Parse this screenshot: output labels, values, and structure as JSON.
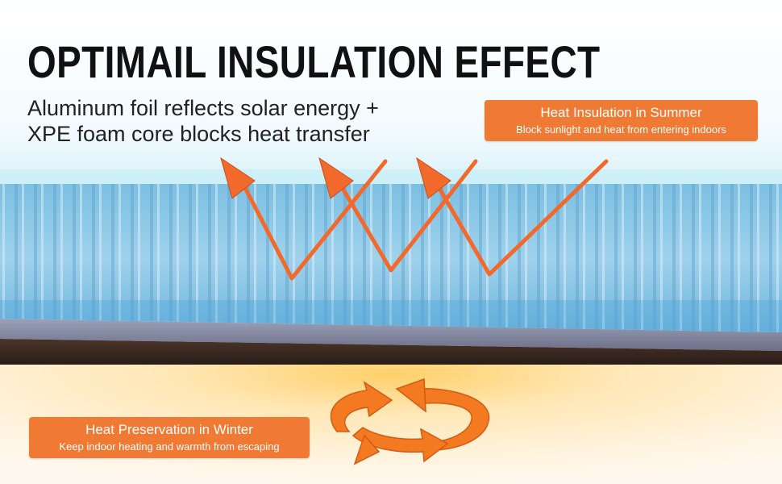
{
  "headline": "OPTIMAIL INSULATION EFFECT",
  "subtitle": {
    "line1": "Aluminum foil reflects solar energy +",
    "line2": "XPE foam core blocks heat transfer"
  },
  "summer": {
    "title": "Heat Insulation in Summer",
    "desc": "Block sunlight and heat from entering indoors"
  },
  "winter": {
    "title": "Heat Preservation in Winter",
    "desc": "Keep indoor heating and warmth from escaping"
  },
  "colors": {
    "accent": "#f07a34",
    "arrow": "#f2692c",
    "foil": "#8fc8e6",
    "foam": "#3b2a22",
    "warm_glow": "#ffd88a"
  },
  "icons": [
    "reflection-arrow-icon",
    "cycle-arrows-icon"
  ]
}
